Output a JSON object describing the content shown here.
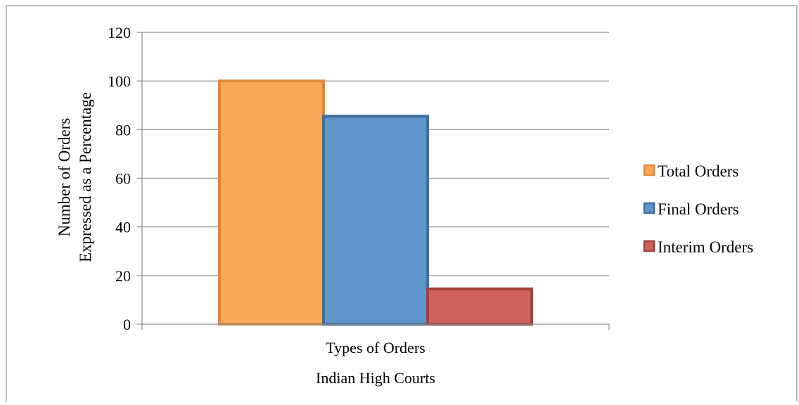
{
  "chart_data": {
    "type": "bar",
    "categories": [
      "Types of Orders"
    ],
    "category_sublabels": [
      "Indian High Courts"
    ],
    "series": [
      {
        "name": "Total Orders",
        "values": [
          100
        ],
        "color": "#F9A857",
        "border": "#E0883A"
      },
      {
        "name": "Final Orders",
        "values": [
          85.5
        ],
        "color": "#5E96CB",
        "border": "#3F6E9D"
      },
      {
        "name": "Interim Orders",
        "values": [
          14.5
        ],
        "color": "#CF625C",
        "border": "#A0403C"
      }
    ],
    "title": "",
    "xlabel": "",
    "ylabel_lines": [
      "Number of Orders",
      "Expressed as a Percentage"
    ],
    "ylim": [
      0,
      120
    ],
    "yticks": [
      0,
      20,
      40,
      60,
      80,
      100,
      120
    ],
    "grid": true,
    "legend": "right"
  }
}
